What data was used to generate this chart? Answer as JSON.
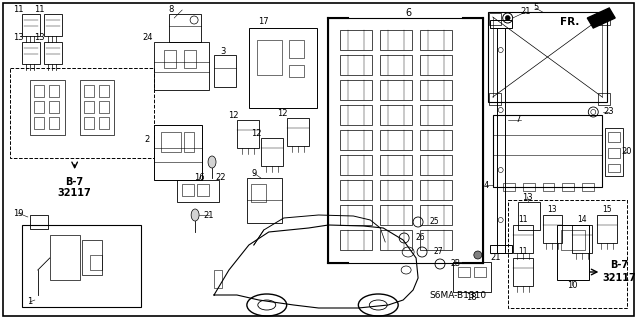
{
  "bg_color": "#ffffff",
  "border_color": "#000000",
  "text_color": "#000000",
  "diagram_ref": "S6MA-B1310",
  "figsize": [
    6.4,
    3.19
  ],
  "dpi": 100,
  "xlim": [
    0,
    640
  ],
  "ylim": [
    0,
    319
  ]
}
